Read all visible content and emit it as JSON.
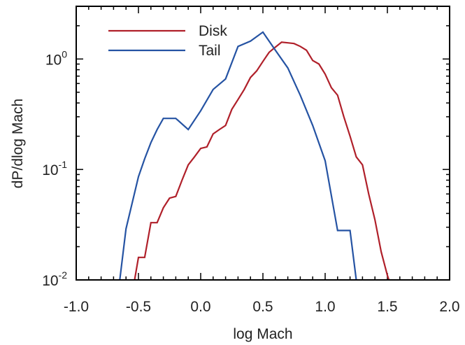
{
  "chart_data": {
    "type": "line",
    "xlabel": "log Mach",
    "ylabel": "dP/dlog Mach",
    "xlim": [
      -1.0,
      2.0
    ],
    "ylim": [
      0.01,
      3.0
    ],
    "yscale": "log",
    "x_tick_labels": [
      "-1.0",
      "-0.5",
      "0.0",
      "0.5",
      "1.0",
      "1.5",
      "2.0"
    ],
    "y_tick_labels": [
      {
        "base": "10",
        "exp": "0"
      },
      {
        "base": "10",
        "exp": "-1"
      },
      {
        "base": "10",
        "exp": "-2"
      }
    ],
    "legend_placement": "top-left",
    "series": [
      {
        "name": "Disk",
        "color": "#b0202a",
        "x": [
          -0.55,
          -0.5,
          -0.45,
          -0.4,
          -0.35,
          -0.3,
          -0.25,
          -0.2,
          -0.15,
          -0.1,
          -0.05,
          0.0,
          0.05,
          0.1,
          0.15,
          0.2,
          0.25,
          0.3,
          0.35,
          0.4,
          0.45,
          0.5,
          0.55,
          0.6,
          0.65,
          0.7,
          0.75,
          0.8,
          0.85,
          0.9,
          0.95,
          1.0,
          1.05,
          1.1,
          1.15,
          1.2,
          1.25,
          1.3,
          1.35,
          1.4,
          1.45,
          1.5,
          1.55
        ],
        "y": [
          0.0075,
          0.016,
          0.016,
          0.033,
          0.033,
          0.045,
          0.055,
          0.057,
          0.08,
          0.11,
          0.13,
          0.155,
          0.16,
          0.21,
          0.23,
          0.25,
          0.35,
          0.43,
          0.53,
          0.68,
          0.78,
          0.95,
          1.15,
          1.28,
          1.42,
          1.4,
          1.38,
          1.3,
          1.2,
          0.97,
          0.9,
          0.73,
          0.55,
          0.47,
          0.3,
          0.2,
          0.13,
          0.11,
          0.06,
          0.035,
          0.018,
          0.011,
          0.0075
        ]
      },
      {
        "name": "Tail",
        "color": "#2553a3",
        "x": [
          -0.7,
          -0.65,
          -0.6,
          -0.55,
          -0.5,
          -0.45,
          -0.4,
          -0.35,
          -0.3,
          -0.2,
          -0.1,
          0.0,
          0.1,
          0.2,
          0.3,
          0.4,
          0.5,
          0.6,
          0.7,
          0.8,
          0.9,
          1.0,
          1.1,
          1.15,
          1.2,
          1.25,
          1.3
        ],
        "y": [
          0.0075,
          0.01,
          0.029,
          0.05,
          0.086,
          0.125,
          0.175,
          0.23,
          0.29,
          0.29,
          0.23,
          0.34,
          0.53,
          0.66,
          1.3,
          1.45,
          1.75,
          1.2,
          0.83,
          0.47,
          0.25,
          0.12,
          0.028,
          0.028,
          0.028,
          0.01,
          0.0075
        ]
      }
    ]
  }
}
